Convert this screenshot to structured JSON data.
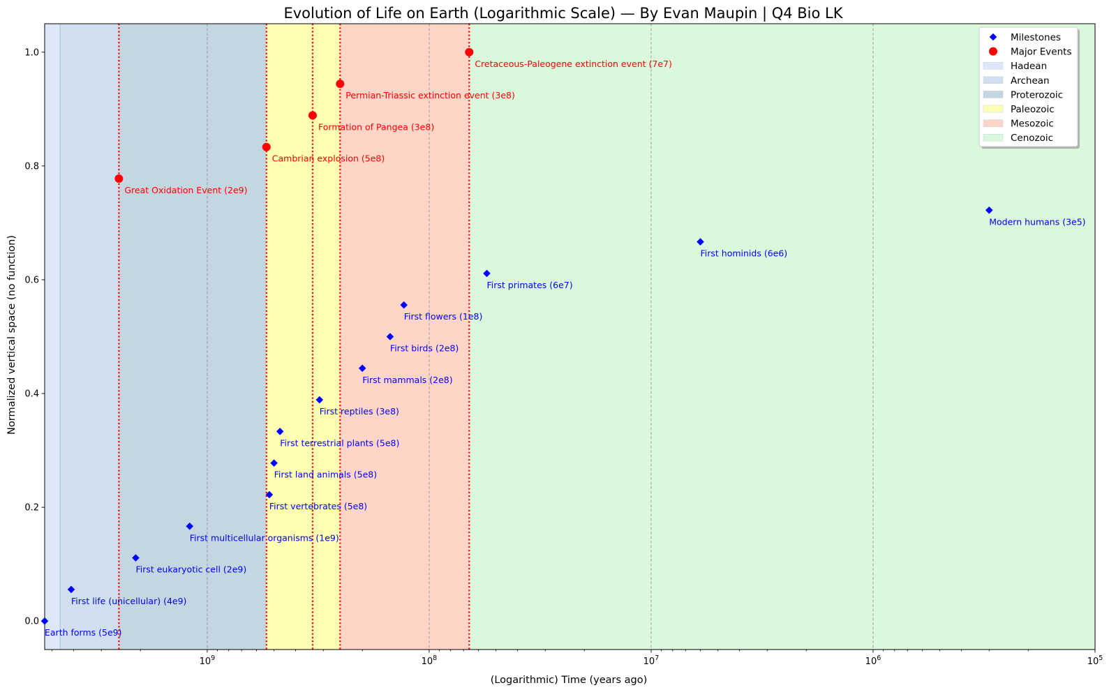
{
  "chart_data": {
    "type": "scatter",
    "title": "Evolution of Life on Earth (Logarithmic Scale) — By Evan Maupin | Q4 Bio LK",
    "xlabel": "(Logarithmic) Time (years ago)",
    "ylabel": "Normalized vertical space (no function)",
    "x_scale": "log",
    "x_reversed": true,
    "xlim": [
      5400000000,
      100000
    ],
    "ylim": [
      -0.05,
      1.05
    ],
    "x_ticks": [
      {
        "value": 1000000000,
        "base": "10",
        "exp": "9"
      },
      {
        "value": 100000000,
        "base": "10",
        "exp": "8"
      },
      {
        "value": 10000000,
        "base": "10",
        "exp": "7"
      },
      {
        "value": 1000000,
        "base": "10",
        "exp": "6"
      },
      {
        "value": 100000,
        "base": "10",
        "exp": "5"
      }
    ],
    "y_ticks": [
      {
        "value": 0.0,
        "label": "0.0"
      },
      {
        "value": 0.2,
        "label": "0.2"
      },
      {
        "value": 0.4,
        "label": "0.4"
      },
      {
        "value": 0.6,
        "label": "0.6"
      },
      {
        "value": 0.8,
        "label": "0.8"
      },
      {
        "value": 1.0,
        "label": "1.0"
      }
    ],
    "grid": "x-major-dashed",
    "legend": {
      "placement": "top-right",
      "entries": [
        "Milestones",
        "Major Events",
        "Hadean",
        "Archean",
        "Proterozoic",
        "Paleozoic",
        "Mesozoic",
        "Cenozoic"
      ]
    },
    "eras": [
      {
        "name": "Hadean",
        "start": 5400000000,
        "end": 4600000000,
        "color": "#dce8f8"
      },
      {
        "name": "Archean",
        "start": 4600000000,
        "end": 2500000000,
        "color": "#d0dfee"
      },
      {
        "name": "Proterozoic",
        "start": 2500000000,
        "end": 541000000,
        "color": "#c4d6e0"
      },
      {
        "name": "Paleozoic",
        "start": 541000000,
        "end": 252000000,
        "color": "#ffffb3"
      },
      {
        "name": "Mesozoic",
        "start": 252000000,
        "end": 66000000,
        "color": "#ffd5c8"
      },
      {
        "name": "Cenozoic",
        "start": 66000000,
        "end": 100000,
        "color": "#dcf8dc"
      }
    ],
    "series": [
      {
        "name": "Milestones",
        "color": "#0000ff",
        "marker": "diamond",
        "points": [
          {
            "x": 5400000000,
            "y": 0.0,
            "label": "Earth forms (5e9)"
          },
          {
            "x": 4100000000,
            "y": 0.0556,
            "label": "First life (unicellular) (4e9)"
          },
          {
            "x": 2100000000,
            "y": 0.1111,
            "label": "First eukaryotic cell (2e9)"
          },
          {
            "x": 1200000000,
            "y": 0.1667,
            "label": "First multicellular organisms (1e9)"
          },
          {
            "x": 525000000,
            "y": 0.2222,
            "label": "First vertebrates (5e8)"
          },
          {
            "x": 500000000,
            "y": 0.2778,
            "label": "First land animals (5e8)"
          },
          {
            "x": 470000000,
            "y": 0.3333,
            "label": "First terrestrial plants (5e8)"
          },
          {
            "x": 312000000,
            "y": 0.3889,
            "label": "First reptiles (3e8)"
          },
          {
            "x": 200000000,
            "y": 0.4444,
            "label": "First mammals (2e8)"
          },
          {
            "x": 150000000,
            "y": 0.5,
            "label": "First birds (2e8)"
          },
          {
            "x": 130000000,
            "y": 0.5556,
            "label": "First flowers (1e8)"
          },
          {
            "x": 55000000,
            "y": 0.6111,
            "label": "First primates (6e7)"
          },
          {
            "x": 6000000,
            "y": 0.6667,
            "label": "First hominids (6e6)"
          },
          {
            "x": 300000,
            "y": 0.7222,
            "label": "Modern humans (3e5)"
          }
        ]
      },
      {
        "name": "Major Events",
        "color": "#ff0000",
        "marker": "circle",
        "points": [
          {
            "x": 2500000000,
            "y": 0.7778,
            "label": "Great Oxidation Event (2e9)"
          },
          {
            "x": 541000000,
            "y": 0.8333,
            "label": "Cambrian explosion (5e8)"
          },
          {
            "x": 335000000,
            "y": 0.8889,
            "label": "Formation of Pangea (3e8)"
          },
          {
            "x": 252000000,
            "y": 0.9444,
            "label": "Permian-Triassic extinction event (3e8)"
          },
          {
            "x": 66000000,
            "y": 1.0,
            "label": "Cretaceous-Paleogene extinction event (7e7)"
          }
        ]
      }
    ]
  }
}
